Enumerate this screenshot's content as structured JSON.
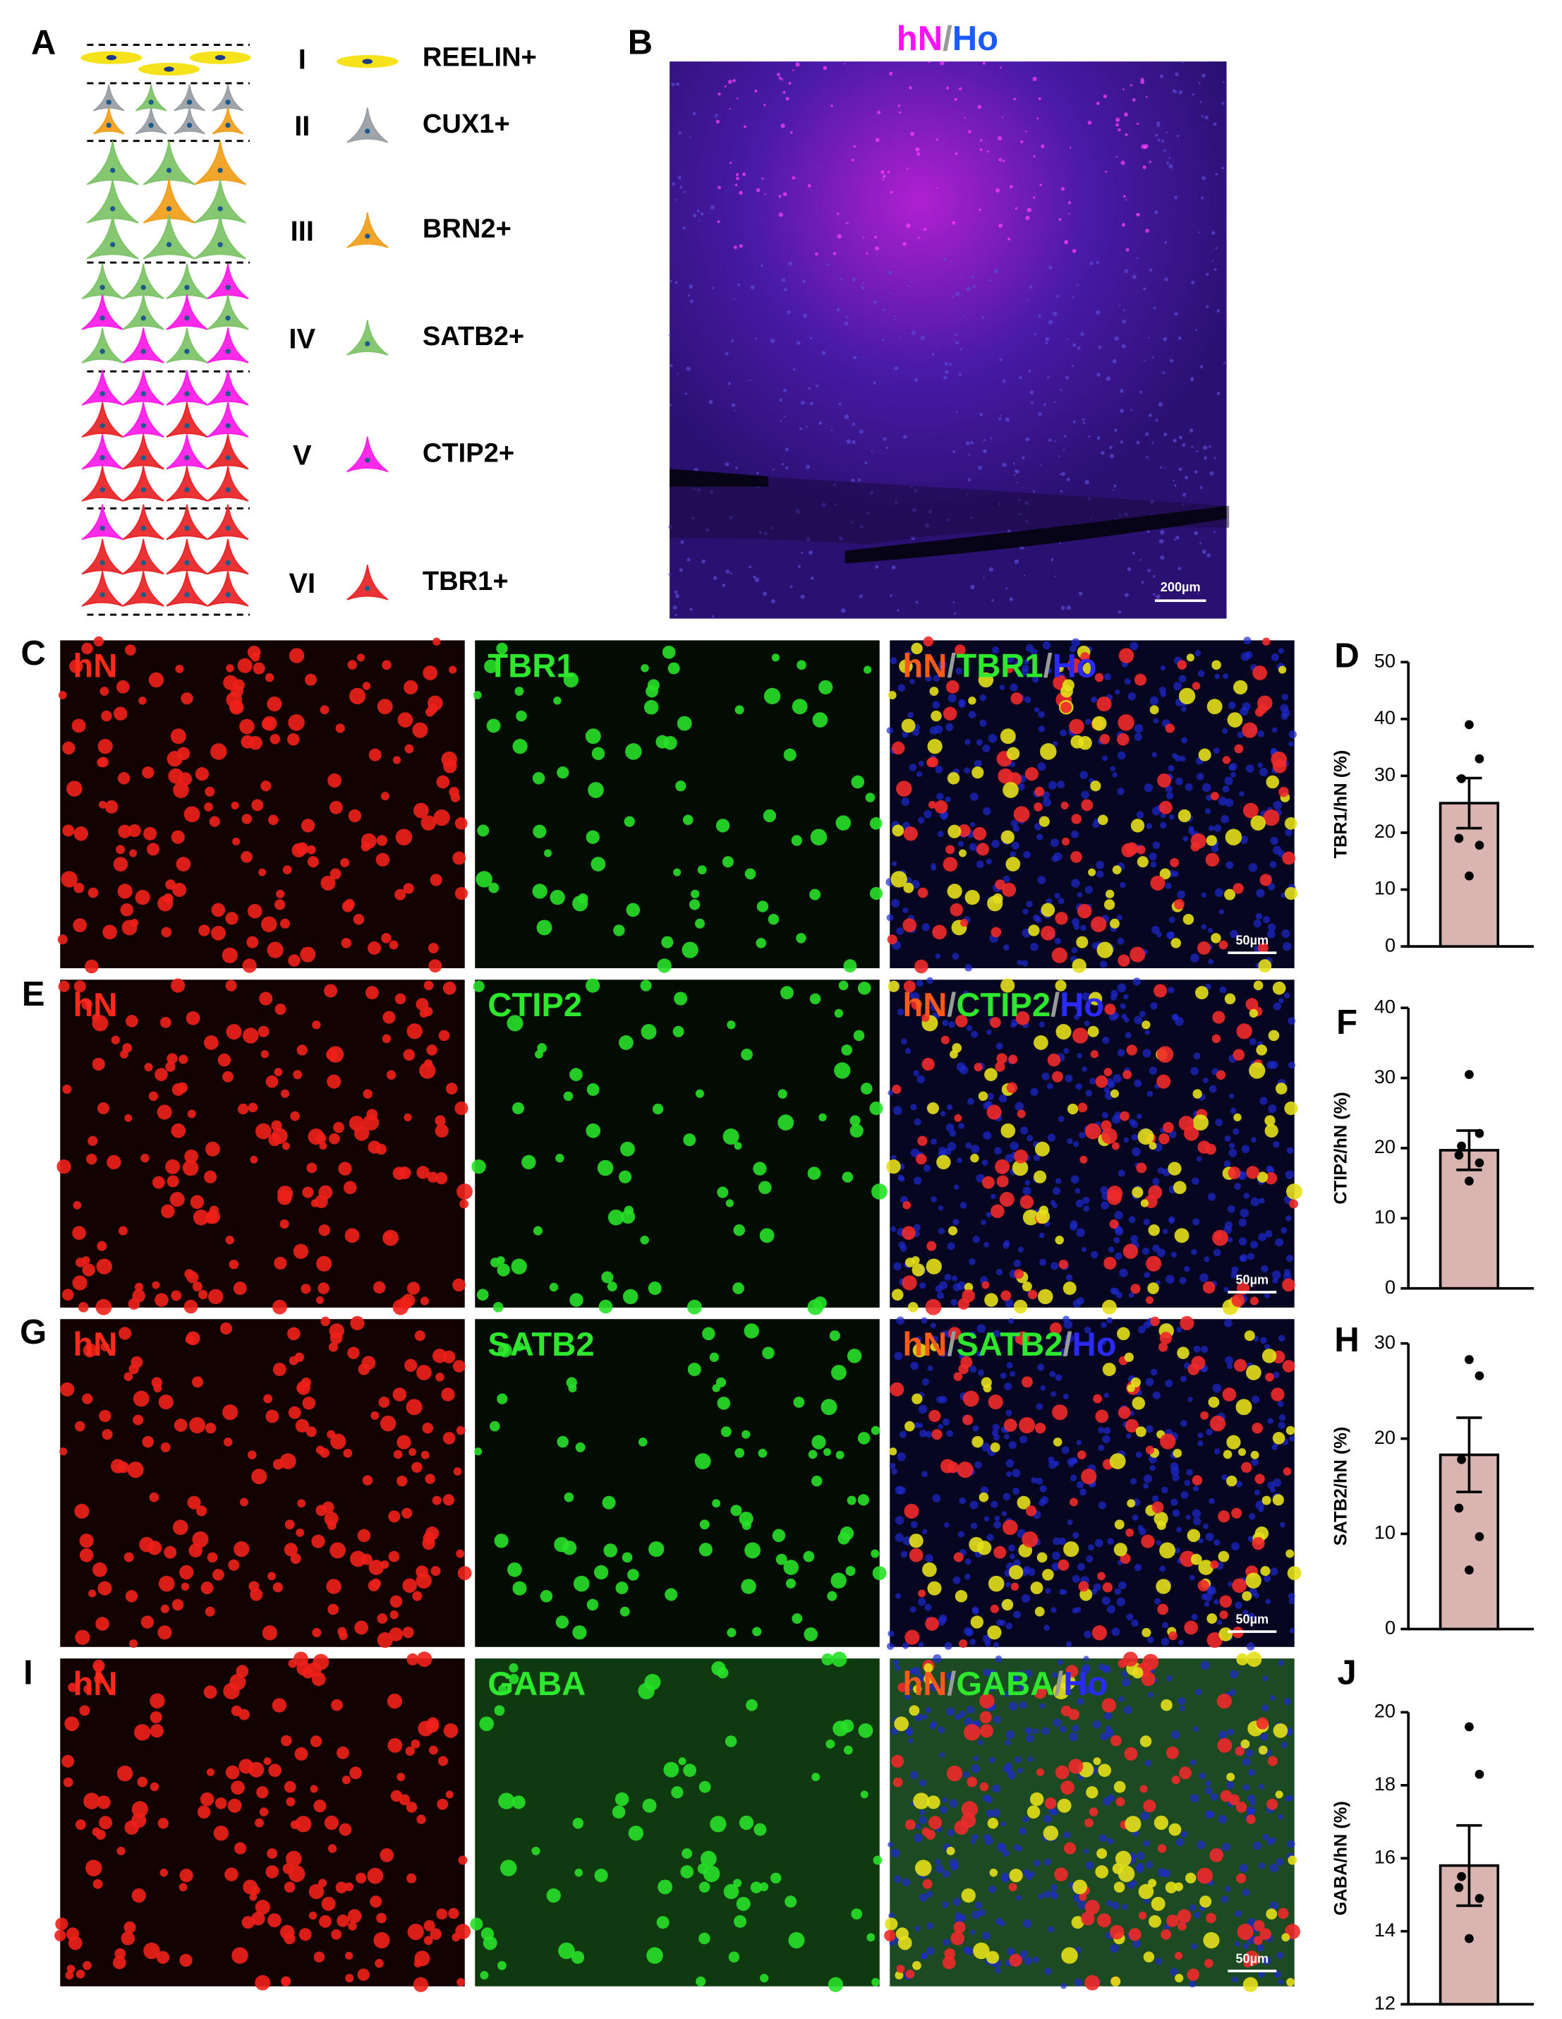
{
  "panel_labels": [
    "A",
    "B",
    "C",
    "D",
    "E",
    "F",
    "G",
    "H",
    "I",
    "J"
  ],
  "panel_a": {
    "layers": [
      {
        "numeral": "I",
        "marker": "REELIN+"
      },
      {
        "numeral": "II",
        "marker": "CUX1+"
      },
      {
        "numeral": "III",
        "marker": "BRN2+"
      },
      {
        "numeral": "IV",
        "marker": "SATB2+"
      },
      {
        "numeral": "V",
        "marker": "CTIP2+"
      },
      {
        "numeral": "VI",
        "marker": "TBR1+"
      }
    ]
  },
  "panel_b": {
    "title_parts": [
      {
        "text": "hN",
        "color": "#ff10ff"
      },
      {
        "text": "/",
        "color": "#9a9a9a"
      },
      {
        "text": "Ho",
        "color": "#1a5cff"
      }
    ],
    "scale_bar": "200µm"
  },
  "micrographs": [
    {
      "channels": [
        [
          {
            "text": "hN",
            "color": "#ff2a1a"
          }
        ],
        [
          {
            "text": "TBR1",
            "color": "#2ee82e"
          }
        ],
        [
          {
            "text": "hN",
            "color": "#ff5a1a"
          },
          {
            "text": "/",
            "color": "#9a9a9a"
          },
          {
            "text": "TBR1",
            "color": "#2ee82e"
          },
          {
            "text": "/",
            "color": "#9a9a9a"
          },
          {
            "text": "Ho",
            "color": "#2a2aff"
          }
        ]
      ],
      "scale_bar": "50µm"
    },
    {
      "channels": [
        [
          {
            "text": "hN",
            "color": "#ff2a1a"
          }
        ],
        [
          {
            "text": "CTIP2",
            "color": "#2ee82e"
          }
        ],
        [
          {
            "text": "hN",
            "color": "#ff5a1a"
          },
          {
            "text": "/",
            "color": "#9a9a9a"
          },
          {
            "text": "CTIP2",
            "color": "#2ee82e"
          },
          {
            "text": "/",
            "color": "#9a9a9a"
          },
          {
            "text": "Ho",
            "color": "#2a2aff"
          }
        ]
      ],
      "scale_bar": "50µm"
    },
    {
      "channels": [
        [
          {
            "text": "hN",
            "color": "#ff2a1a"
          }
        ],
        [
          {
            "text": "SATB2",
            "color": "#2ee82e"
          }
        ],
        [
          {
            "text": "hN",
            "color": "#ff5a1a"
          },
          {
            "text": "/",
            "color": "#9a9a9a"
          },
          {
            "text": "SATB2",
            "color": "#2ee82e"
          },
          {
            "text": "/",
            "color": "#9a9a9a"
          },
          {
            "text": "Ho",
            "color": "#2a2aff"
          }
        ]
      ],
      "scale_bar": "50µm"
    },
    {
      "channels": [
        [
          {
            "text": "hN",
            "color": "#ff2a1a"
          }
        ],
        [
          {
            "text": "GABA",
            "color": "#2ee82e"
          }
        ],
        [
          {
            "text": "hN",
            "color": "#ff5a1a"
          },
          {
            "text": "/",
            "color": "#9a9a9a"
          },
          {
            "text": "GABA",
            "color": "#2ee82e"
          },
          {
            "text": "/",
            "color": "#9a9a9a"
          },
          {
            "text": "Ho",
            "color": "#2a2aff"
          }
        ]
      ],
      "scale_bar": "50µm"
    }
  ],
  "chart_data": [
    {
      "type": "bar",
      "ylabel": "TBR1/hN (%)",
      "values": [
        25.2
      ],
      "errors": [
        4.4
      ],
      "points": [
        39,
        33,
        29.5,
        19,
        17.8,
        12.4
      ],
      "color": "#d9b4b0",
      "ylim": [
        0,
        50
      ],
      "yticks": [
        0,
        10,
        20,
        30,
        40,
        50
      ]
    },
    {
      "type": "bar",
      "ylabel": "CTIP2/hN (%)",
      "values": [
        19.7
      ],
      "errors": [
        2.8
      ],
      "points": [
        30.5,
        22.1,
        20.3,
        19,
        17.9,
        15.3
      ],
      "color": "#d9b4b0",
      "ylim": [
        0,
        40
      ],
      "yticks": [
        0,
        10,
        20,
        30,
        40
      ]
    },
    {
      "type": "bar",
      "ylabel": "SATB2/hN (%)",
      "values": [
        18.3
      ],
      "errors": [
        3.9
      ],
      "points": [
        28.3,
        26.6,
        17.8,
        12.7,
        9.7,
        6.2
      ],
      "color": "#d9b4b0",
      "ylim": [
        0,
        30
      ],
      "yticks": [
        0,
        10,
        20,
        30
      ]
    },
    {
      "type": "bar",
      "ylabel": "GABA/hN (%)",
      "values": [
        15.8
      ],
      "errors": [
        1.1
      ],
      "points": [
        19.6,
        18.3,
        15.5,
        15.2,
        14.9,
        13.8
      ],
      "color": "#d9b4b0",
      "ylim": [
        12,
        20
      ],
      "yticks": [
        12,
        14,
        16,
        18,
        20
      ]
    }
  ]
}
